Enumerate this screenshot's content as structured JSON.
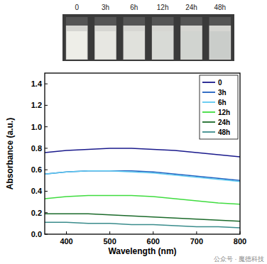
{
  "photo": {
    "labels": [
      "0",
      "3h",
      "6h",
      "12h",
      "24h",
      "48h"
    ]
  },
  "chart_data": {
    "type": "line",
    "x_label": "Wavelength (nm)",
    "y_label": "Absorbance (a.u.)",
    "annotations": [
      "公众号 · 魔德科技"
    ],
    "x": [
      350,
      400,
      450,
      500,
      550,
      600,
      650,
      700,
      750,
      800
    ],
    "series": [
      {
        "name": "0",
        "color": "#1a1a8c",
        "values": [
          0.76,
          0.78,
          0.79,
          0.8,
          0.8,
          0.79,
          0.78,
          0.76,
          0.74,
          0.72
        ]
      },
      {
        "name": "3h",
        "color": "#1f5fbf",
        "values": [
          0.56,
          0.58,
          0.59,
          0.59,
          0.59,
          0.58,
          0.56,
          0.54,
          0.52,
          0.5
        ]
      },
      {
        "name": "6h",
        "color": "#5cc8f0",
        "values": [
          0.56,
          0.58,
          0.59,
          0.59,
          0.58,
          0.57,
          0.55,
          0.53,
          0.51,
          0.49
        ]
      },
      {
        "name": "12h",
        "color": "#3fdc3f",
        "values": [
          0.33,
          0.35,
          0.36,
          0.36,
          0.36,
          0.35,
          0.33,
          0.31,
          0.29,
          0.28
        ]
      },
      {
        "name": "24h",
        "color": "#1b6a2a",
        "values": [
          0.19,
          0.19,
          0.19,
          0.18,
          0.17,
          0.16,
          0.15,
          0.14,
          0.13,
          0.12
        ]
      },
      {
        "name": "48h",
        "color": "#3a8c8c",
        "values": [
          0.11,
          0.11,
          0.1,
          0.1,
          0.09,
          0.09,
          0.08,
          0.07,
          0.07,
          0.06
        ]
      }
    ],
    "xlim": [
      350,
      800
    ],
    "xticks": [
      400,
      500,
      600,
      700,
      800
    ],
    "ylim": [
      0,
      1.5
    ],
    "yticks": [
      {
        "value": 0,
        "label": "0.0"
      },
      0.2,
      0.4,
      0.6,
      0.8,
      {
        "value": 1,
        "label": "1.0"
      },
      1.2,
      1.4
    ],
    "grid": false,
    "legend": "top-right"
  }
}
